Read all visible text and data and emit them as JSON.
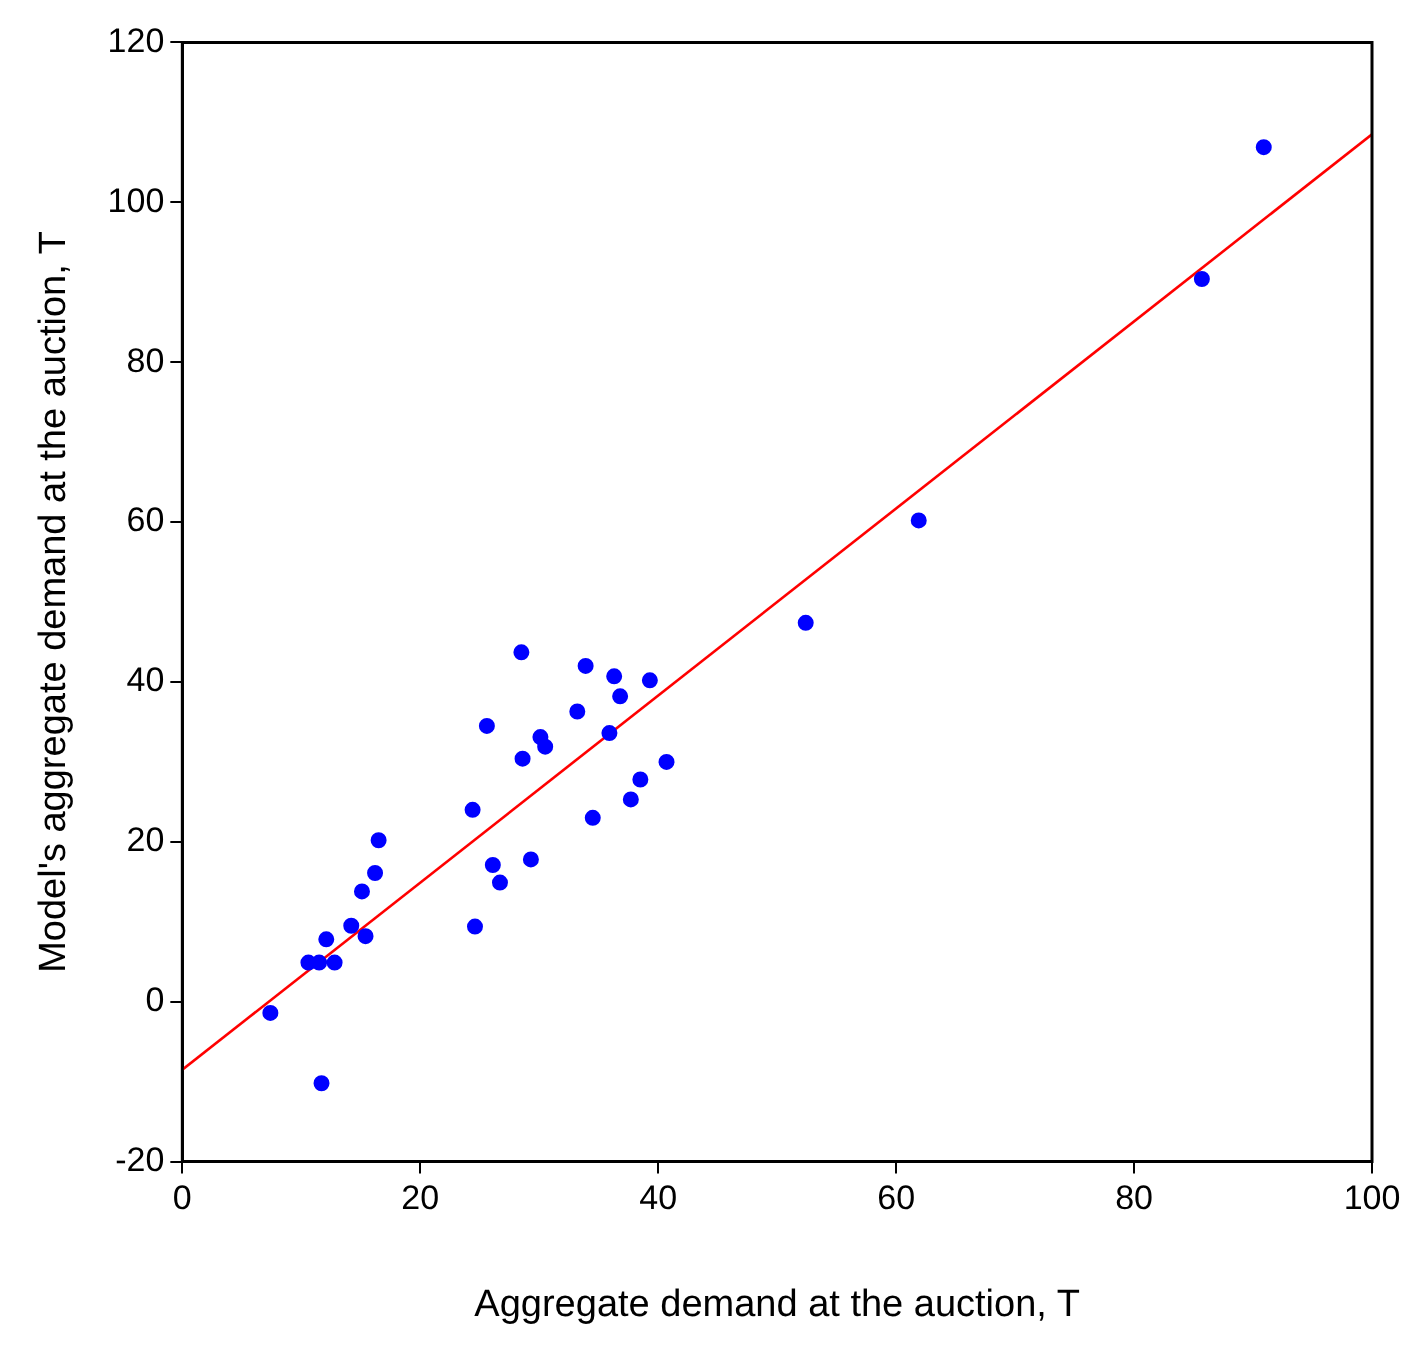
{
  "chart_data": {
    "type": "scatter",
    "xlabel": "Aggregate demand at the auction, T",
    "ylabel": "Model's aggregate demand at the auction, T",
    "xlim": [
      0,
      100
    ],
    "ylim": [
      -20,
      120
    ],
    "xticks": [
      0,
      20,
      40,
      60,
      80,
      100
    ],
    "yticks": [
      -20,
      0,
      20,
      40,
      60,
      80,
      100,
      120
    ],
    "grid": false,
    "legend": false,
    "series": [
      {
        "marker": "circle",
        "color": "#0000ff",
        "x": [
          28.5,
          33.9,
          36.3,
          39.3,
          36.8,
          33.2,
          25.6,
          35.9,
          30.1,
          30.5,
          28.6,
          40.7,
          38.5,
          37.7,
          24.4,
          34.5,
          16.5,
          16.2,
          26.1,
          29.3,
          26.7,
          15.1,
          24.6,
          14.2,
          15.4,
          12.1,
          10.6,
          12.8,
          11.5,
          7.4,
          11.7,
          90.9,
          85.7,
          61.9,
          52.4
        ],
        "values": [
          43.7,
          42.0,
          40.7,
          40.2,
          38.2,
          36.3,
          34.5,
          33.6,
          33.1,
          31.9,
          30.4,
          30.0,
          27.8,
          25.3,
          24.0,
          23.0,
          20.2,
          16.1,
          17.1,
          17.8,
          14.9,
          13.8,
          9.4,
          9.5,
          8.2,
          7.8,
          4.9,
          4.9,
          4.9,
          -1.4,
          -10.2,
          106.9,
          90.4,
          60.2,
          47.4
        ]
      },
      {
        "type": "line",
        "color": "#ff0000",
        "x": [
          0,
          100
        ],
        "values": [
          -8.5,
          108.5
        ]
      }
    ]
  }
}
